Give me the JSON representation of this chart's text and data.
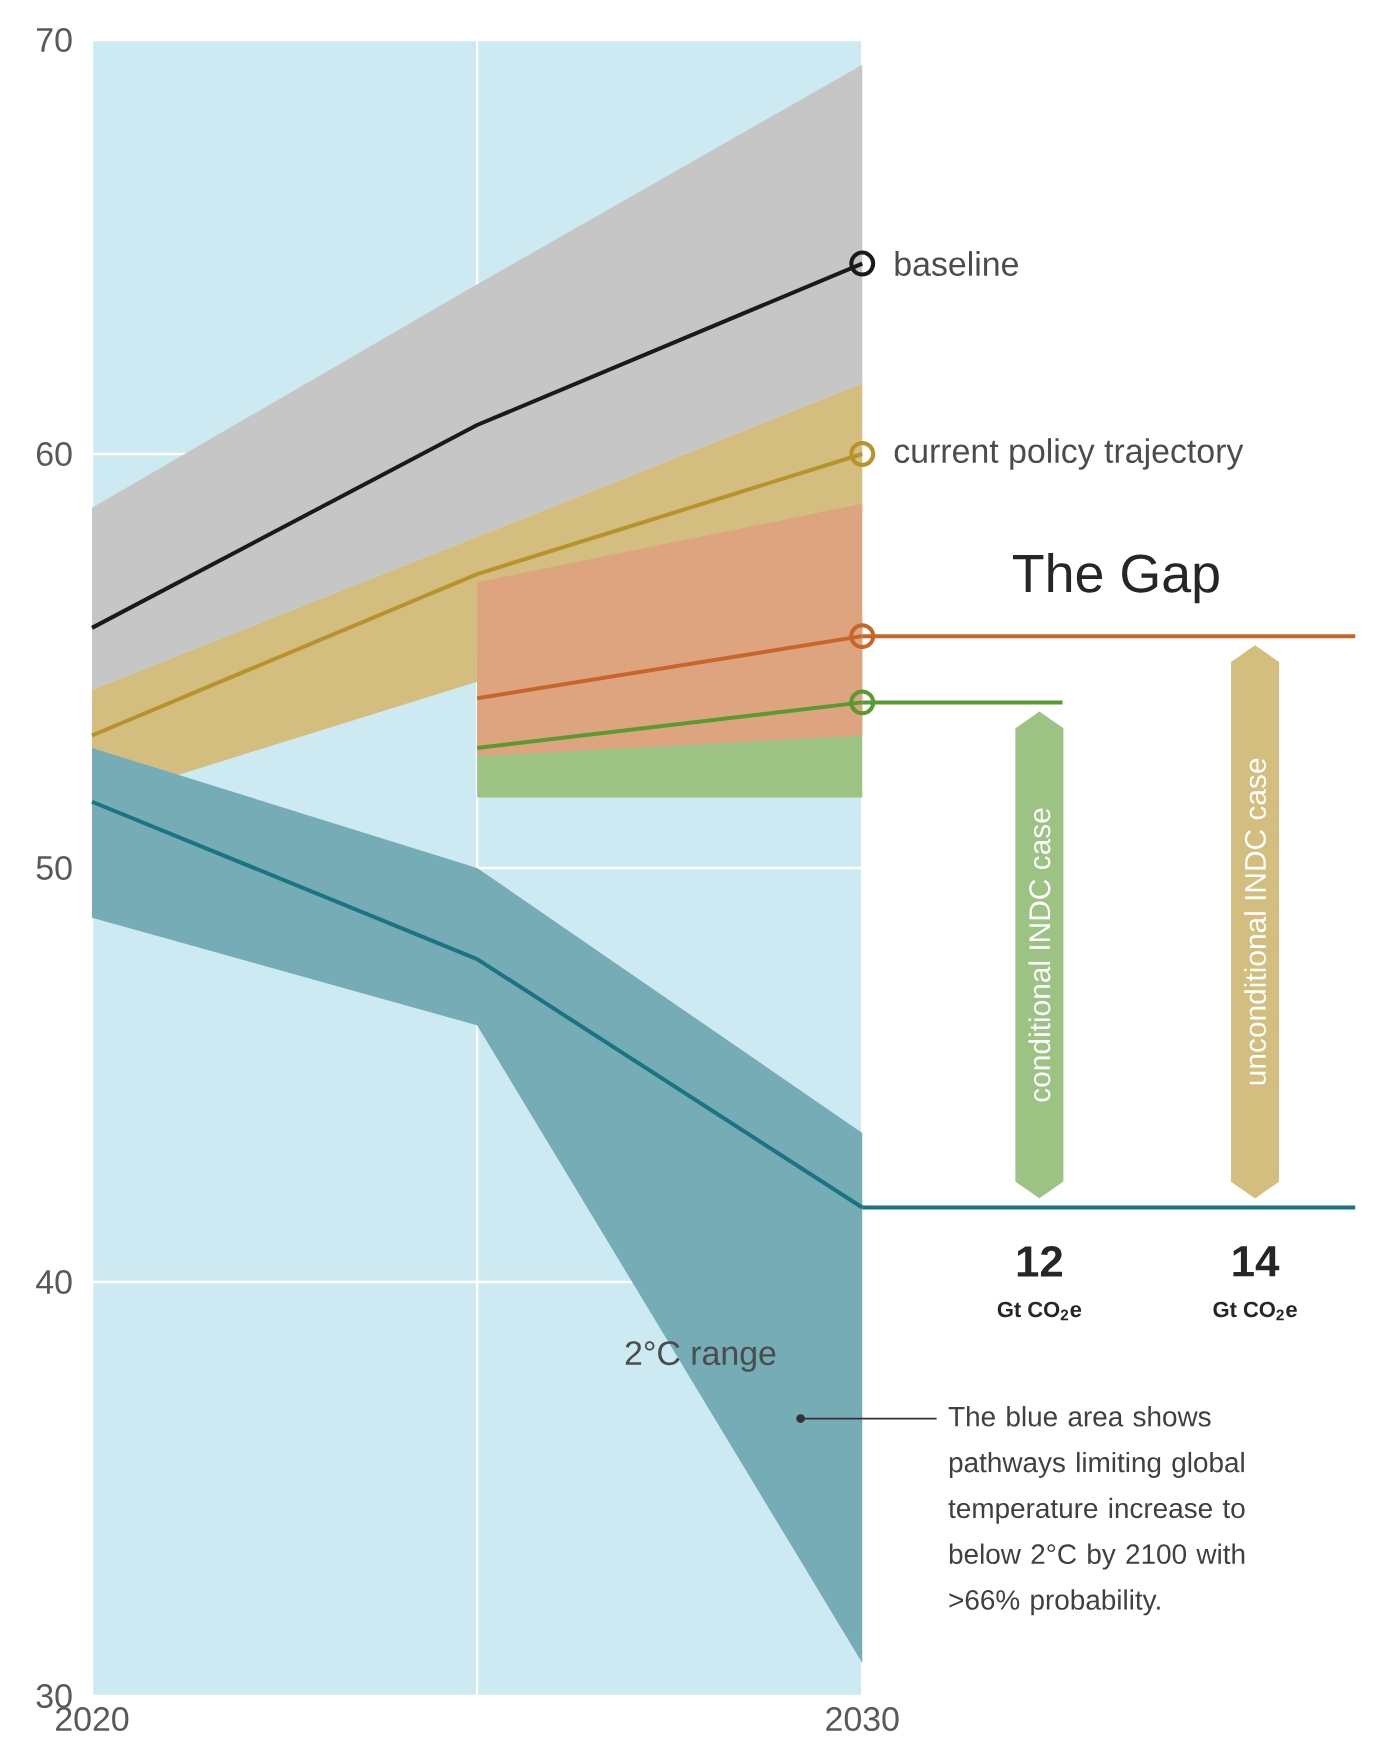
{
  "chart_data": {
    "type": "line",
    "xlim": [
      2020,
      2036.8
    ],
    "ylim": [
      30,
      70
    ],
    "xticks": [
      2020,
      {
        "value": 2025,
        "label": null
      },
      2030
    ],
    "yticks": [
      30,
      40,
      50,
      60,
      70
    ],
    "grid": true,
    "line_style": "solid",
    "bands": [
      {
        "axis": "x",
        "from": 2020,
        "to": 2030,
        "color": "#cdeaf2"
      }
    ],
    "series": [
      {
        "name": "baseline",
        "color": "#1a1a1a",
        "x": [
          2020,
          2025,
          2030
        ],
        "values": [
          55.8,
          60.7,
          64.6
        ],
        "lower": [
          54.3,
          58.0,
          61.7
        ],
        "upper": [
          58.7,
          64.1,
          69.4
        ]
      },
      {
        "name": "current policy trajectory",
        "color": "#b8922a",
        "x": [
          2020,
          2025,
          2030
        ],
        "values": [
          53.2,
          57.1,
          60.0
        ],
        "lower": [
          51.6,
          54.5,
          58.6
        ],
        "upper": [
          54.3,
          58.0,
          61.7
        ]
      },
      {
        "color": "#c8662a",
        "x": [
          2025,
          2030
        ],
        "values": [
          54.1,
          55.6
        ],
        "lower": [
          52.7,
          53.2
        ],
        "upper": [
          56.9,
          58.8
        ]
      },
      {
        "color": "#5a9a32",
        "x": [
          2025,
          2030
        ],
        "values": [
          52.9,
          54.0
        ],
        "lower": [
          51.7,
          51.7
        ],
        "upper": [
          55.0,
          56.0
        ]
      },
      {
        "color": "#1a7484",
        "x": [
          2020,
          2025,
          2030
        ],
        "values": [
          51.6,
          47.8,
          41.8
        ],
        "lower": [
          48.8,
          46.2,
          30.8
        ],
        "upper": [
          52.9,
          50.0,
          43.6
        ]
      },
      {
        "color": "#c8662a",
        "x": [
          2030,
          2036.4
        ],
        "values": [
          55.6,
          55.6
        ]
      },
      {
        "color": "#5a9a32",
        "x": [
          2030,
          2032.6
        ],
        "values": [
          54.0,
          54.0
        ]
      },
      {
        "color": "#1a7484",
        "x": [
          2030,
          2036.4
        ],
        "values": [
          41.8,
          41.8
        ]
      },
      {
        "type": "scatter",
        "marker": "circle",
        "x": [
          2030,
          2030,
          2030,
          2030
        ],
        "values": [
          64.6,
          60.0,
          55.6,
          54.0
        ],
        "colors": [
          "#1a1a1a",
          "#b8922a",
          "#c8662a",
          "#5a9a32"
        ]
      }
    ],
    "annotations": [
      "The Gap",
      "conditional INDC case",
      "unconditional INDC case",
      "12",
      "Gt CO$_{2}$e",
      "14",
      "Gt CO$_{2}$e",
      "2°C range",
      "The blue area shows pathways limiting global temperature increase to below 2°C by 2100 with >66% probability."
    ]
  }
}
